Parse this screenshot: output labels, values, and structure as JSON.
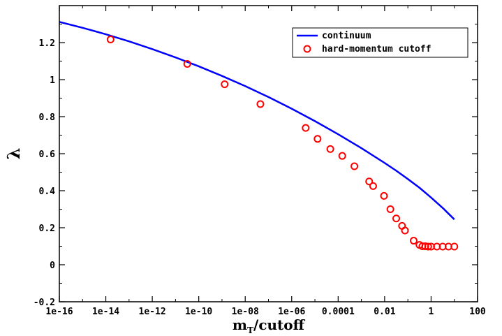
{
  "chart_data": {
    "type": "line",
    "xscale": "log",
    "xlim": [
      1e-16,
      100
    ],
    "ylim": [
      -0.2,
      1.4
    ],
    "xlabel_main": "m",
    "xlabel_sub": "T",
    "xlabel_rest": "/cutoff",
    "ylabel": "λ",
    "x_ticks": [
      {
        "value": 1e-16,
        "label": "1e-16"
      },
      {
        "value": 1e-14,
        "label": "1e-14"
      },
      {
        "value": 1e-12,
        "label": "1e-12"
      },
      {
        "value": 1e-10,
        "label": "1e-10"
      },
      {
        "value": 1e-08,
        "label": "1e-08"
      },
      {
        "value": 1e-06,
        "label": "1e-06"
      },
      {
        "value": 0.0001,
        "label": "0.0001"
      },
      {
        "value": 0.01,
        "label": "0.01"
      },
      {
        "value": 1,
        "label": "1"
      },
      {
        "value": 100,
        "label": "100"
      }
    ],
    "y_ticks": [
      {
        "value": -0.2,
        "label": "-0.2"
      },
      {
        "value": 0,
        "label": "0"
      },
      {
        "value": 0.2,
        "label": "0.2"
      },
      {
        "value": 0.4,
        "label": "0.4"
      },
      {
        "value": 0.6,
        "label": "0.6"
      },
      {
        "value": 0.8,
        "label": "0.8"
      },
      {
        "value": 1,
        "label": "1"
      },
      {
        "value": 1.2,
        "label": "1.2"
      }
    ],
    "legend_position": "top-right",
    "series": [
      {
        "name": "continuum",
        "kind": "line",
        "color": "#0000ff",
        "x": [
          1e-16,
          1e-15,
          1e-14,
          1e-13,
          1e-12,
          1e-11,
          1e-10,
          1e-09,
          1e-08,
          1e-07,
          1e-06,
          1e-05,
          0.0001,
          0.001,
          0.01,
          0.0316,
          0.1,
          0.316,
          1,
          3.16,
          10
        ],
        "y": [
          1.312,
          1.28,
          1.245,
          1.207,
          1.165,
          1.12,
          1.072,
          1.02,
          0.965,
          0.906,
          0.843,
          0.776,
          0.705,
          0.63,
          0.55,
          0.508,
          0.463,
          0.416,
          0.363,
          0.307,
          0.245
        ]
      },
      {
        "name": "hard-momentum cutoff",
        "kind": "scatter",
        "color": "#ff0000",
        "x": [
          1.6e-14,
          3.2e-11,
          1.3e-09,
          4.5e-08,
          4e-06,
          1.3e-05,
          4.6e-05,
          0.00015,
          0.0005,
          0.00216,
          0.0032,
          0.0094,
          0.0177,
          0.0316,
          0.0562,
          0.075,
          0.178,
          0.316,
          0.422,
          0.562,
          0.75,
          1.0,
          1.78,
          3.16,
          5.62,
          10.0
        ],
        "y": [
          1.217,
          1.085,
          0.975,
          0.868,
          0.739,
          0.68,
          0.625,
          0.588,
          0.532,
          0.45,
          0.425,
          0.372,
          0.3,
          0.25,
          0.21,
          0.185,
          0.13,
          0.107,
          0.1,
          0.1,
          0.098,
          0.098,
          0.098,
          0.098,
          0.098,
          0.098
        ]
      }
    ]
  }
}
